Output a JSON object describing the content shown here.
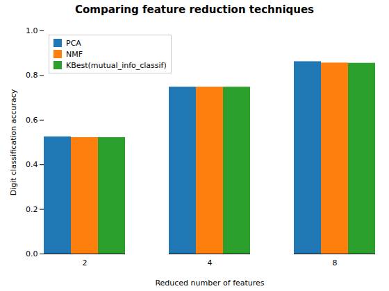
{
  "chart_data": {
    "type": "bar",
    "title": "Comparing feature reduction techniques",
    "xlabel": "Reduced number of features",
    "ylabel": "Digit classification accuracy",
    "categories": [
      2,
      4,
      8
    ],
    "series": [
      {
        "name": "PCA",
        "color": "#1f77b4",
        "values": [
          0.525,
          0.748,
          0.862
        ]
      },
      {
        "name": "NMF",
        "color": "#ff7f0e",
        "values": [
          0.522,
          0.748,
          0.856
        ]
      },
      {
        "name": "KBest(mutual_info_classif)",
        "color": "#2ca02c",
        "values": [
          0.522,
          0.748,
          0.855
        ]
      }
    ],
    "ylim": [
      0.0,
      1.0
    ],
    "yticks": [
      {
        "value": 0,
        "label": "0.0"
      },
      {
        "value": 0.2,
        "label": "0.2"
      },
      {
        "value": 0.4,
        "label": "0.4"
      },
      {
        "value": 0.6,
        "label": "0.6"
      },
      {
        "value": 0.8,
        "label": "0.8"
      },
      {
        "value": 1.0,
        "label": "1.0"
      }
    ],
    "grid": false,
    "legend": "upper left"
  }
}
